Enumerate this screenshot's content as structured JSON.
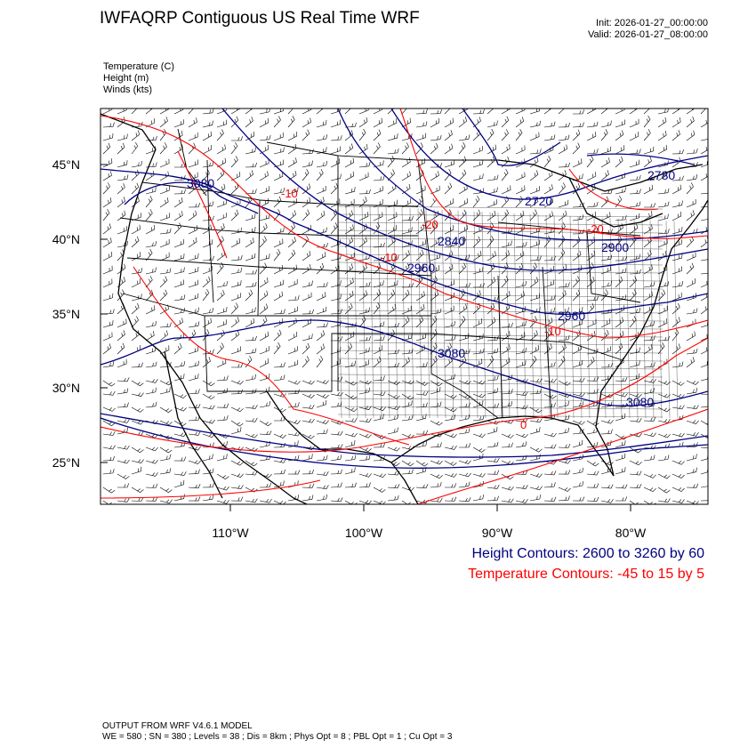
{
  "title": "IWFAQRP Contiguous US Real Time WRF",
  "init": "Init: 2026-01-27_00:00:00",
  "valid": "Valid: 2026-01-27_08:00:00",
  "variables": [
    "Temperature   (C)",
    "Height   (m)",
    "Winds   (kts)"
  ],
  "lat_labels": [
    "45°N",
    "40°N",
    "35°N",
    "30°N",
    "25°N"
  ],
  "lon_labels": [
    "110°W",
    "100°W",
    "90°W",
    "80°W"
  ],
  "height_contour_labels": [
    "3080",
    "2720",
    "2840",
    "2960",
    "3080",
    "2780",
    "2900",
    "2840",
    "2960",
    "3080"
  ],
  "temperature_contour_labels": [
    "-20",
    "-10",
    "-20",
    "-10",
    "0",
    "-10"
  ],
  "legend": {
    "height": "Height Contours: 2600 to 3260 by 60",
    "temperature": "Temperature Contours: -45 to 15 by 5"
  },
  "colors": {
    "height": "#000080",
    "temperature": "#ff0000",
    "map": "#000000"
  },
  "footer": {
    "line1": "OUTPUT FROM WRF V4.6.1 MODEL",
    "line2": "WE = 580 ; SN = 380 ; Levels = 38 ; Dis = 8km ; Phys Opt = 8 ; PBL Opt = 1 ; Cu Opt = 3"
  }
}
